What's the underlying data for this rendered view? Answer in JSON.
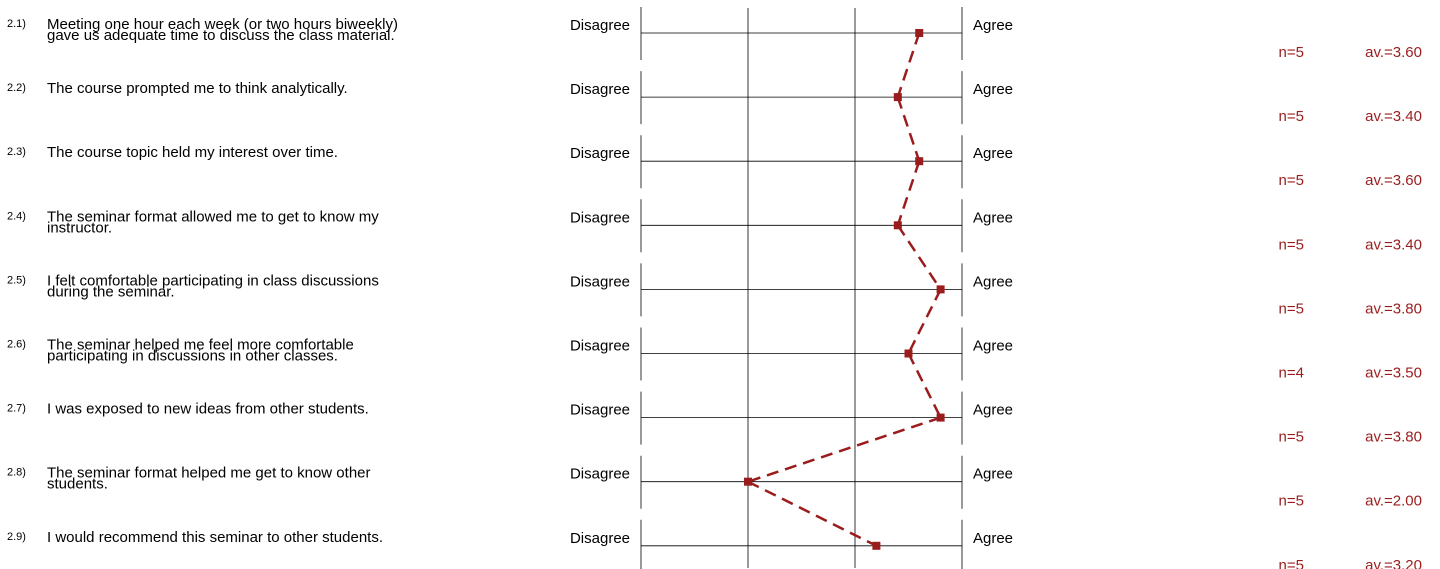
{
  "chart_data": {
    "type": "line",
    "scale_left_label": "Disagree",
    "scale_right_label": "Agree",
    "scale_points": 4,
    "xlim": [
      1,
      4
    ],
    "line_color": "#9b1c1c",
    "line_style": "dashed",
    "items": [
      {
        "number": "2.1)",
        "text_lines": [
          "Meeting one hour each week (or two hours biweekly)",
          "gave us adequate time to discuss the class material."
        ],
        "n": "n=5",
        "avg_label": "av.=3.60",
        "value": 3.6
      },
      {
        "number": "2.2)",
        "text_lines": [
          "The course prompted me to think analytically."
        ],
        "n": "n=5",
        "avg_label": "av.=3.40",
        "value": 3.4
      },
      {
        "number": "2.3)",
        "text_lines": [
          "The course topic held my interest over time."
        ],
        "n": "n=5",
        "avg_label": "av.=3.60",
        "value": 3.6
      },
      {
        "number": "2.4)",
        "text_lines": [
          "The seminar format allowed me to get to know my",
          "instructor."
        ],
        "n": "n=5",
        "avg_label": "av.=3.40",
        "value": 3.4
      },
      {
        "number": "2.5)",
        "text_lines": [
          "I felt comfortable participating in class discussions",
          "during the seminar."
        ],
        "n": "n=5",
        "avg_label": "av.=3.80",
        "value": 3.8
      },
      {
        "number": "2.6)",
        "text_lines": [
          "The seminar helped me feel more comfortable",
          "participating in discussions in other classes."
        ],
        "n": "n=4",
        "avg_label": "av.=3.50",
        "value": 3.5
      },
      {
        "number": "2.7)",
        "text_lines": [
          "I was exposed to new ideas from other students."
        ],
        "n": "n=5",
        "avg_label": "av.=3.80",
        "value": 3.8
      },
      {
        "number": "2.8)",
        "text_lines": [
          "The seminar format helped me get to know other",
          "students."
        ],
        "n": "n=5",
        "avg_label": "av.=2.00",
        "value": 2.0
      },
      {
        "number": "2.9)",
        "text_lines": [
          "I would recommend this seminar to other students."
        ],
        "n": "n=5",
        "avg_label": "av.=3.20",
        "value": 3.2
      }
    ]
  }
}
